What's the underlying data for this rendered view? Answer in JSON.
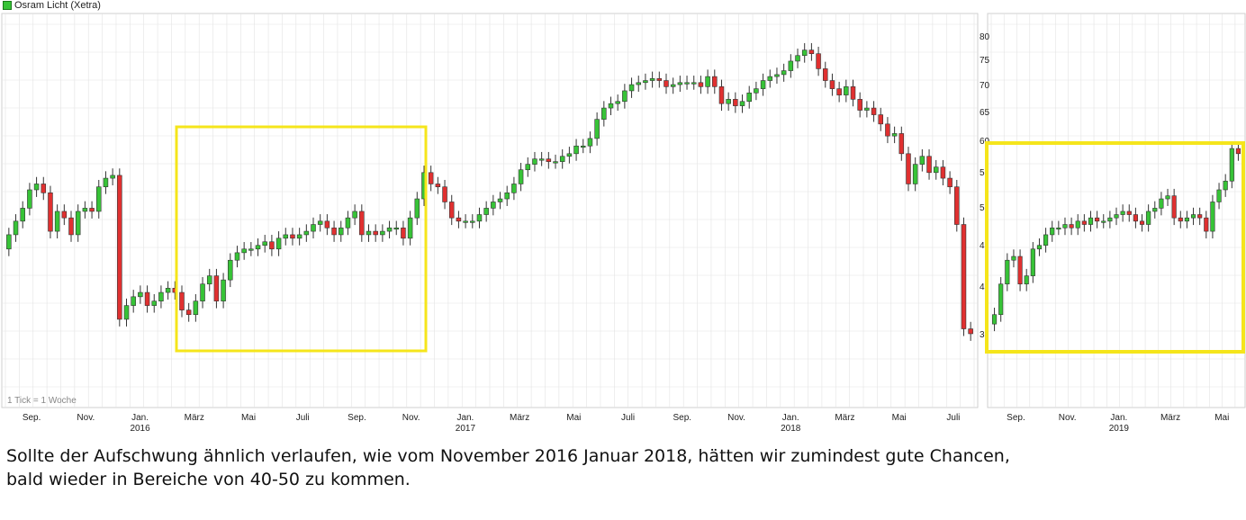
{
  "chart_data": [
    {
      "type": "candlestick",
      "legend": "Osram Licht (Xetra)",
      "note": "1 Tick = 1 Woche",
      "y_ticks": [],
      "x_ticks": [
        {
          "label": "Sep.",
          "year": ""
        },
        {
          "label": "Nov.",
          "year": ""
        },
        {
          "label": "Jan.",
          "year": "2016"
        },
        {
          "label": "März",
          "year": ""
        },
        {
          "label": "Mai",
          "year": ""
        },
        {
          "label": "Juli",
          "year": ""
        },
        {
          "label": "Sep.",
          "year": ""
        },
        {
          "label": "Nov.",
          "year": ""
        },
        {
          "label": "Jan.",
          "year": "2017"
        },
        {
          "label": "März",
          "year": ""
        },
        {
          "label": "Mai",
          "year": ""
        },
        {
          "label": "Juli",
          "year": ""
        },
        {
          "label": "Sep.",
          "year": ""
        },
        {
          "label": "Nov.",
          "year": ""
        },
        {
          "label": "Jan.",
          "year": "2018"
        },
        {
          "label": "März",
          "year": ""
        },
        {
          "label": "Mai",
          "year": ""
        },
        {
          "label": "Juli",
          "year": ""
        }
      ],
      "weekly_close": [
        40.5,
        42.5,
        44.5,
        47.5,
        48.5,
        47,
        41,
        44,
        43,
        40.5,
        44,
        44.5,
        44,
        48,
        49.5,
        50,
        30,
        31.5,
        32.5,
        33,
        31.5,
        32,
        33,
        33.5,
        33,
        31,
        30.5,
        32,
        34,
        35,
        32,
        34.5,
        37,
        38,
        38.5,
        38.5,
        39,
        39.5,
        38.5,
        40,
        40.5,
        40,
        40.5,
        41,
        42,
        42.5,
        41.5,
        40.5,
        41.5,
        43,
        44,
        40.5,
        41,
        40.5,
        41,
        41.5,
        41.5,
        40,
        43,
        46,
        50.5,
        48.5,
        48,
        45.5,
        43,
        42.5,
        42.5,
        42.5,
        43.5,
        44.5,
        45.5,
        46,
        47,
        48.5,
        51,
        52,
        53,
        53,
        52.5,
        52.5,
        53.5,
        54,
        55.5,
        55.5,
        57,
        61,
        63.5,
        64.5,
        65,
        67.5,
        69,
        69.5,
        70,
        70.5,
        70,
        68.5,
        69,
        69.5,
        69.5,
        69.5,
        68.5,
        71,
        68.5,
        64.5,
        65.5,
        64,
        65,
        67,
        68,
        70,
        71,
        71.5,
        72.5,
        75,
        76.5,
        78,
        77,
        73,
        70,
        68,
        66.5,
        68.5,
        65.5,
        63,
        63.5,
        62,
        60,
        57.5,
        58,
        54,
        48.5,
        52,
        53.5,
        50.5,
        51.5,
        49.5,
        48,
        42,
        29,
        28.5
      ],
      "weekly_open": [
        38.5,
        40.5,
        42.5,
        44.5,
        47.5,
        48.5,
        47,
        41,
        44,
        43,
        40.5,
        44,
        44.5,
        44,
        48,
        49.5,
        50,
        30,
        31.5,
        32.5,
        33,
        31.5,
        32,
        33,
        33.5,
        33,
        31,
        30.5,
        32,
        34,
        35,
        32,
        34.5,
        37,
        38,
        38.5,
        38.5,
        39,
        39.5,
        38.5,
        40,
        40.5,
        40,
        40.5,
        41,
        42,
        42.5,
        41.5,
        40.5,
        41.5,
        43,
        44,
        40.5,
        41,
        40.5,
        41,
        41.5,
        41.5,
        40,
        43,
        46,
        50.5,
        48.5,
        48,
        45.5,
        43,
        42.5,
        42.5,
        42.5,
        43.5,
        44.5,
        45.5,
        46,
        47,
        48.5,
        51,
        52,
        53,
        53,
        52.5,
        52.5,
        53.5,
        54,
        55.5,
        55.5,
        57,
        61,
        63.5,
        64.5,
        65,
        67.5,
        69,
        69.5,
        70,
        70.5,
        70,
        68.5,
        69,
        69.5,
        69.5,
        69.5,
        68.5,
        71,
        68.5,
        64.5,
        65.5,
        64,
        65,
        67,
        68,
        70,
        71,
        71.5,
        72.5,
        75,
        76.5,
        78,
        77,
        73,
        70,
        68,
        66.5,
        68.5,
        65.5,
        63,
        63.5,
        62,
        60,
        57.5,
        58,
        54,
        48.5,
        52,
        53.5,
        50.5,
        51.5,
        49.5,
        48,
        42,
        29
      ]
    },
    {
      "type": "candlestick",
      "y_ticks": [
        "80",
        "75",
        "70",
        "65",
        "60",
        "5",
        "5",
        "4",
        "4",
        "3"
      ],
      "x_ticks": [
        {
          "label": "Sep.",
          "year": ""
        },
        {
          "label": "Nov.",
          "year": ""
        },
        {
          "label": "Jan.",
          "year": "2019"
        },
        {
          "label": "März",
          "year": ""
        },
        {
          "label": "Mai",
          "year": ""
        }
      ],
      "weekly_close": [
        30.5,
        34,
        37,
        37.5,
        34,
        35,
        38.5,
        39,
        40.5,
        41.5,
        41.5,
        42,
        41.5,
        42.5,
        42,
        43,
        42.5,
        42.5,
        43,
        43.5,
        44,
        43.5,
        42.5,
        42,
        44,
        44.5,
        46,
        46.5,
        43,
        42.5,
        43,
        43.5,
        43,
        41,
        45.5,
        47.5,
        49,
        55,
        54
      ],
      "weekly_open": [
        29.5,
        30.5,
        34,
        37,
        37.5,
        34,
        35,
        38.5,
        39,
        40.5,
        41.5,
        41.5,
        42,
        41.5,
        42.5,
        42,
        43,
        42.5,
        42.5,
        43,
        43.5,
        44,
        43.5,
        42.5,
        42,
        44,
        44.5,
        46,
        46.5,
        43,
        42.5,
        43,
        43.5,
        43,
        41,
        45.5,
        47.5,
        49,
        55
      ]
    }
  ],
  "caption": {
    "line1": "Sollte der Aufschwung ähnlich verlaufen, wie vom November 2016 Januar 2018, hätten wir zumindest gute Chancen,",
    "line2": "bald wieder in Bereiche von 40-50 zu kommen."
  },
  "colors": {
    "up": "#37c337",
    "down": "#e03030",
    "highlight": "#f5e51b",
    "grid": "#e3e3e3"
  }
}
